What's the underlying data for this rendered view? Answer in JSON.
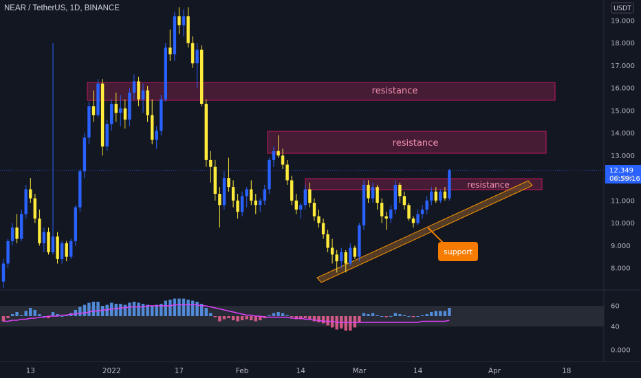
{
  "symbol_title": "NEAR / TetherUS, 1D, BINANCE",
  "currency": "USDT",
  "price": {
    "last": "12.349",
    "countdown": "06:59:16",
    "ticks": [
      "19.000",
      "18.000",
      "17.000",
      "16.000",
      "15.000",
      "14.000",
      "13.000",
      "12.000",
      "11.000",
      "10.000",
      "9.000",
      "8.000"
    ]
  },
  "osc": {
    "ticks": [
      "60",
      "40",
      "0.000"
    ]
  },
  "time_labels": [
    "13",
    "2022",
    "17",
    "Feb",
    "14",
    "Mar",
    "14",
    "Apr",
    "18"
  ],
  "annotations": {
    "resistance_1": "resistance",
    "resistance_2": "resistance",
    "resistance_3": "resistance",
    "support": "support"
  },
  "colors": {
    "background": "#131722",
    "up": "#2962ff",
    "down": "#ffeb3b",
    "resistance_fill": "#5d1f3c",
    "resistance_border": "#c2185b",
    "resistance_text": "#f48fb1",
    "support_fill": "#6b4a2a",
    "support_border": "#ff9800",
    "support_callout": "#f57c00",
    "rsi_line": "#e040fb",
    "last_price_line": "#2962ff"
  },
  "chart_data": {
    "type": "candlestick",
    "y_range": [
      7.0,
      19.5
    ],
    "ohlc": [
      [
        7.4,
        8.4,
        7.1,
        8.2
      ],
      [
        8.2,
        9.3,
        8.0,
        9.2
      ],
      [
        9.2,
        10.0,
        9.0,
        9.8
      ],
      [
        9.8,
        10.4,
        9.1,
        9.3
      ],
      [
        9.3,
        10.6,
        9.2,
        10.4
      ],
      [
        10.4,
        11.7,
        10.2,
        11.5
      ],
      [
        11.5,
        12.0,
        10.9,
        11.1
      ],
      [
        11.1,
        11.3,
        10.0,
        10.2
      ],
      [
        10.2,
        10.6,
        9.0,
        9.1
      ],
      [
        9.1,
        9.8,
        8.7,
        9.6
      ],
      [
        9.6,
        9.8,
        8.6,
        8.7
      ],
      [
        8.7,
        18.0,
        8.6,
        9.4
      ],
      [
        9.4,
        9.6,
        8.2,
        8.4
      ],
      [
        8.4,
        9.2,
        8.2,
        9.1
      ],
      [
        9.1,
        9.2,
        8.3,
        8.5
      ],
      [
        8.5,
        9.3,
        8.4,
        9.2
      ],
      [
        9.2,
        10.8,
        9.0,
        10.7
      ],
      [
        10.7,
        12.4,
        10.5,
        12.3
      ],
      [
        12.3,
        14.0,
        12.0,
        13.8
      ],
      [
        13.8,
        15.4,
        13.5,
        15.2
      ],
      [
        15.2,
        15.9,
        14.5,
        14.8
      ],
      [
        14.8,
        16.4,
        14.7,
        16.2
      ],
      [
        16.2,
        16.4,
        13.0,
        13.4
      ],
      [
        13.4,
        14.6,
        13.2,
        14.4
      ],
      [
        14.4,
        15.5,
        14.1,
        15.3
      ],
      [
        15.3,
        15.8,
        14.5,
        14.9
      ],
      [
        14.9,
        15.7,
        14.3,
        15.1
      ],
      [
        15.1,
        15.5,
        14.2,
        14.6
      ],
      [
        14.6,
        16.0,
        14.3,
        15.8
      ],
      [
        15.8,
        16.6,
        15.5,
        16.3
      ],
      [
        16.3,
        16.5,
        15.2,
        15.5
      ],
      [
        15.5,
        16.2,
        14.9,
        15.9
      ],
      [
        15.9,
        16.1,
        14.5,
        14.8
      ],
      [
        14.8,
        15.5,
        13.5,
        13.7
      ],
      [
        13.7,
        14.3,
        13.3,
        14.1
      ],
      [
        14.1,
        15.7,
        13.9,
        15.5
      ],
      [
        15.5,
        18.0,
        15.4,
        17.8
      ],
      [
        17.8,
        18.6,
        17.2,
        17.5
      ],
      [
        17.5,
        19.4,
        17.2,
        19.2
      ],
      [
        19.2,
        19.6,
        18.4,
        18.8
      ],
      [
        18.8,
        19.5,
        18.3,
        19.2
      ],
      [
        19.2,
        19.6,
        17.8,
        18.0
      ],
      [
        18.0,
        18.3,
        16.9,
        17.1
      ],
      [
        17.1,
        18.0,
        16.0,
        17.7
      ],
      [
        17.7,
        17.9,
        15.2,
        15.3
      ],
      [
        15.3,
        15.5,
        12.5,
        12.8
      ],
      [
        12.8,
        13.2,
        11.8,
        12.5
      ],
      [
        12.5,
        12.8,
        11.0,
        11.3
      ],
      [
        11.3,
        11.6,
        9.8,
        10.8
      ],
      [
        10.8,
        12.3,
        10.6,
        12.0
      ],
      [
        12.0,
        12.9,
        11.4,
        11.6
      ],
      [
        11.6,
        11.9,
        10.7,
        11.0
      ],
      [
        11.0,
        11.3,
        10.2,
        10.5
      ],
      [
        10.5,
        11.4,
        10.3,
        11.2
      ],
      [
        11.2,
        11.6,
        10.7,
        11.5
      ],
      [
        11.5,
        11.9,
        10.8,
        11.0
      ],
      [
        11.0,
        11.3,
        10.4,
        10.8
      ],
      [
        10.8,
        11.1,
        10.5,
        11.0
      ],
      [
        11.0,
        11.7,
        10.8,
        11.5
      ],
      [
        11.5,
        12.9,
        11.3,
        12.8
      ],
      [
        12.8,
        13.4,
        12.5,
        13.2
      ],
      [
        13.2,
        13.9,
        12.9,
        13.0
      ],
      [
        13.0,
        13.3,
        12.4,
        12.6
      ],
      [
        12.6,
        12.8,
        11.7,
        11.9
      ],
      [
        11.9,
        12.1,
        10.8,
        11.0
      ],
      [
        11.0,
        11.3,
        10.4,
        10.6
      ],
      [
        10.6,
        10.9,
        10.2,
        10.8
      ],
      [
        10.8,
        11.7,
        10.6,
        11.5
      ],
      [
        11.5,
        11.8,
        10.7,
        10.9
      ],
      [
        10.9,
        11.1,
        10.1,
        10.3
      ],
      [
        10.3,
        10.6,
        9.8,
        10.0
      ],
      [
        10.0,
        10.2,
        9.3,
        9.5
      ],
      [
        9.5,
        9.7,
        8.7,
        8.9
      ],
      [
        8.9,
        9.3,
        8.2,
        8.6
      ],
      [
        8.6,
        8.8,
        7.8,
        8.3
      ],
      [
        8.3,
        8.9,
        8.0,
        8.7
      ],
      [
        8.7,
        8.8,
        7.8,
        8.2
      ],
      [
        8.2,
        9.1,
        8.1,
        8.9
      ],
      [
        8.9,
        9.0,
        8.4,
        8.5
      ],
      [
        8.5,
        10.0,
        8.3,
        9.9
      ],
      [
        9.9,
        11.9,
        9.7,
        11.7
      ],
      [
        11.7,
        11.9,
        10.9,
        11.1
      ],
      [
        11.1,
        11.8,
        10.9,
        11.6
      ],
      [
        11.6,
        11.7,
        10.6,
        10.9
      ],
      [
        10.9,
        11.1,
        10.0,
        10.3
      ],
      [
        10.3,
        10.5,
        9.7,
        10.2
      ],
      [
        10.2,
        10.8,
        10.0,
        10.6
      ],
      [
        10.6,
        11.9,
        10.4,
        11.7
      ],
      [
        11.7,
        11.8,
        10.9,
        11.2
      ],
      [
        11.2,
        11.4,
        10.6,
        10.8
      ],
      [
        10.8,
        10.9,
        10.1,
        10.2
      ],
      [
        10.2,
        10.3,
        9.8,
        10.0
      ],
      [
        10.0,
        10.6,
        9.9,
        10.4
      ],
      [
        10.4,
        10.8,
        10.2,
        10.6
      ],
      [
        10.6,
        11.2,
        10.4,
        11.0
      ],
      [
        11.0,
        11.6,
        10.8,
        11.4
      ],
      [
        11.4,
        11.6,
        10.9,
        11.0
      ],
      [
        11.0,
        11.5,
        10.9,
        11.4
      ],
      [
        11.4,
        11.6,
        11.0,
        11.1
      ],
      [
        11.1,
        12.4,
        11.0,
        12.35
      ]
    ],
    "rsi": [
      45,
      48,
      52,
      54,
      51,
      55,
      58,
      56,
      52,
      50,
      48,
      54,
      52,
      50,
      51,
      53,
      56,
      59,
      61,
      63,
      64,
      64,
      60,
      61,
      63,
      62,
      62,
      61,
      63,
      64,
      63,
      62,
      61,
      60,
      61,
      62,
      65,
      66,
      67,
      67,
      67,
      66,
      65,
      64,
      62,
      58,
      53,
      49,
      45,
      47,
      48,
      46,
      45,
      46,
      47,
      46,
      45,
      46,
      48,
      51,
      53,
      54,
      53,
      51,
      49,
      47,
      47,
      48,
      47,
      45,
      44,
      43,
      41,
      39,
      37,
      38,
      36,
      36,
      39,
      44,
      53,
      52,
      53,
      51,
      50,
      49,
      50,
      53,
      52,
      51,
      50,
      49,
      50,
      51,
      52,
      54,
      55,
      55,
      55,
      58
    ],
    "rsi_ma": [
      45,
      45,
      46,
      46,
      47,
      47,
      48,
      48,
      49,
      49,
      50,
      50,
      50,
      51,
      51,
      52,
      52,
      53,
      53,
      54,
      55,
      55,
      56,
      56,
      57,
      57,
      58,
      58,
      59,
      59,
      59,
      59,
      60,
      60,
      60,
      60,
      60,
      60,
      61,
      61,
      61,
      61,
      61,
      61,
      60,
      60,
      59,
      58,
      57,
      56,
      55,
      54,
      53,
      52,
      51,
      51,
      50,
      50,
      49,
      49,
      49,
      49,
      49,
      49,
      48,
      48,
      48,
      47,
      47,
      46,
      46,
      45,
      45,
      45,
      44,
      44,
      44,
      44,
      44,
      44,
      44,
      44,
      44,
      44,
      44,
      44,
      44,
      44,
      44,
      44,
      44,
      44,
      44,
      45,
      45,
      45,
      45,
      45,
      45,
      46
    ],
    "rsi_band": [
      40,
      60
    ]
  }
}
